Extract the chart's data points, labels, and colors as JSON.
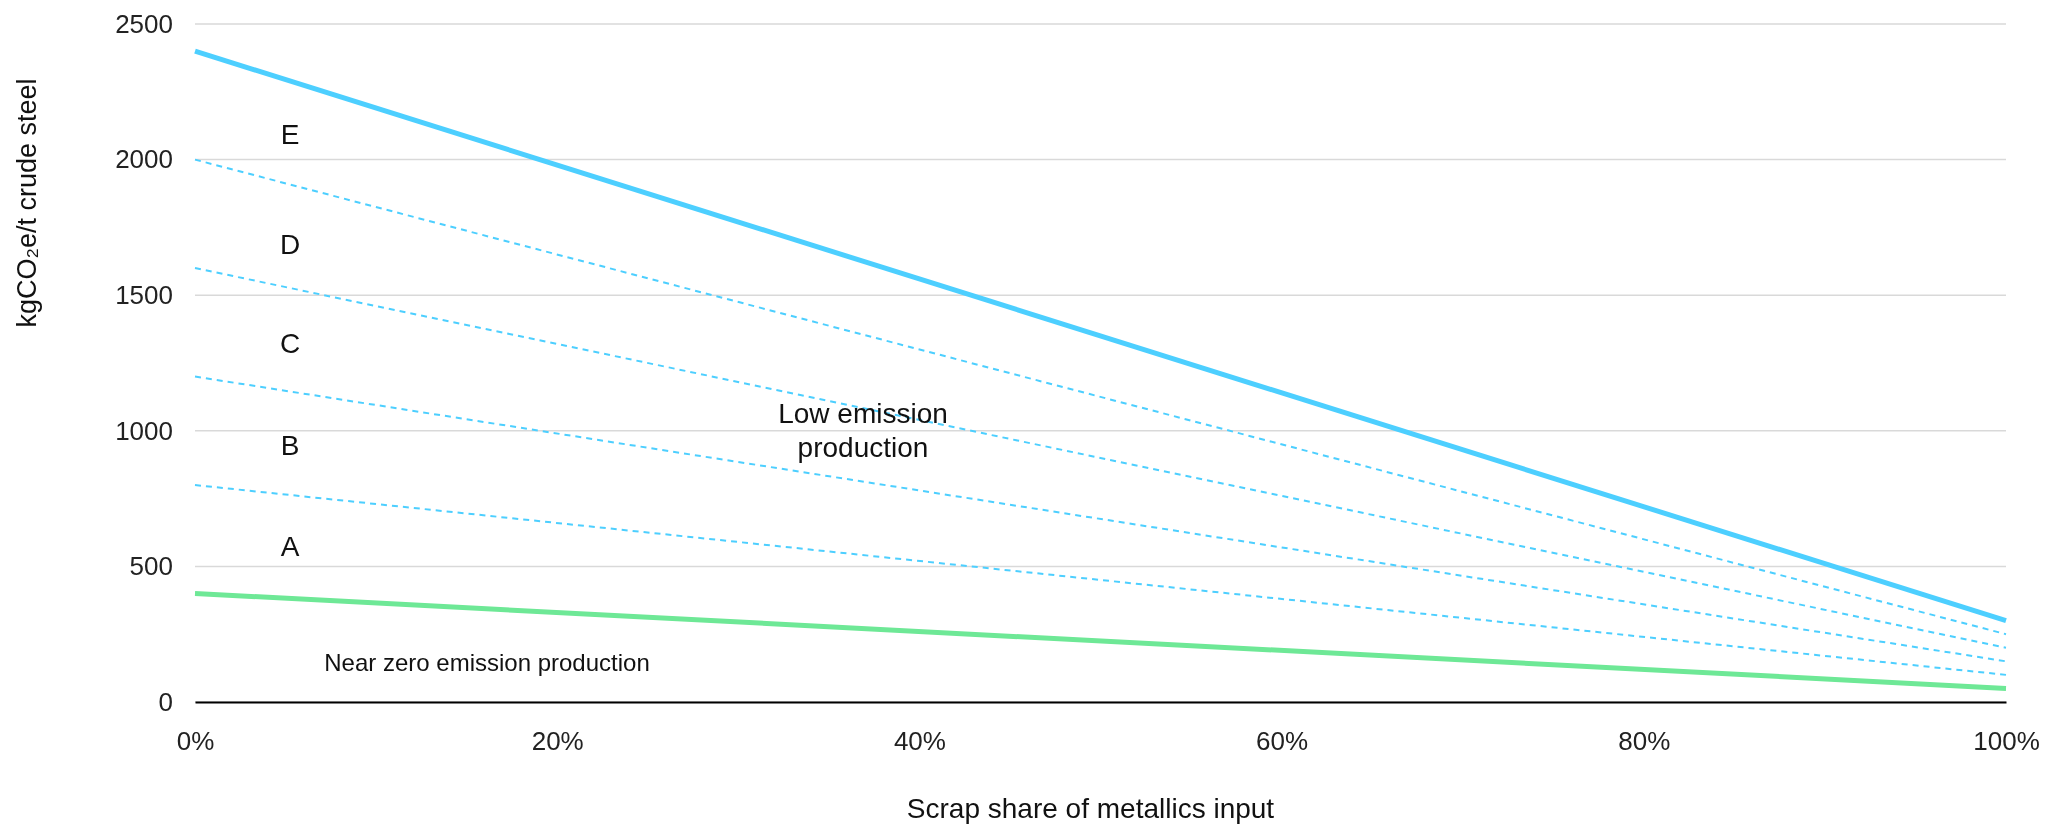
{
  "chart_data": {
    "type": "line",
    "xlabel": "Scrap share of metallics input",
    "ylabel": "kgCO₂e/t crude steel",
    "x": [
      0,
      100
    ],
    "xlim": [
      0,
      100
    ],
    "xticks": [
      {
        "value": 0,
        "label": "0%"
      },
      {
        "value": 20,
        "label": "20%"
      },
      {
        "value": 40,
        "label": "40%"
      },
      {
        "value": 60,
        "label": "60%"
      },
      {
        "value": 80,
        "label": "80%"
      },
      {
        "value": 100,
        "label": "100%"
      }
    ],
    "ylim": [
      0,
      2500
    ],
    "yticks": [
      0,
      500,
      1000,
      1500,
      2000,
      2500
    ],
    "grid": "y",
    "marker": "none",
    "series": [
      {
        "color": "#4dcfff",
        "values": [
          2400,
          300
        ],
        "line_style": "solid"
      },
      {
        "color": "#4dcfff",
        "values": [
          2000,
          250
        ],
        "line_style": "dashed"
      },
      {
        "color": "#4dcfff",
        "values": [
          1600,
          200
        ],
        "line_style": "dashed"
      },
      {
        "color": "#4dcfff",
        "values": [
          1200,
          150
        ],
        "line_style": "dashed"
      },
      {
        "color": "#4dcfff",
        "values": [
          800,
          100
        ],
        "line_style": "dashed"
      },
      {
        "color": "#6ee896",
        "values": [
          400,
          50
        ],
        "line_style": "solid"
      }
    ],
    "annotations": [
      "E",
      "D",
      "C",
      "B",
      "A",
      "Low emission\nproduction",
      "Near zero emission production"
    ]
  }
}
